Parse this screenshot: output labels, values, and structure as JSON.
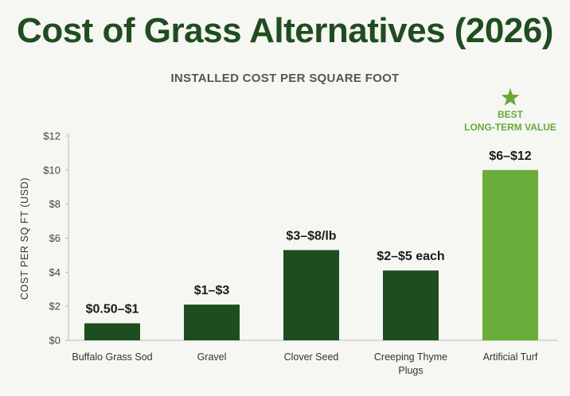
{
  "chart_data": {
    "type": "bar",
    "title": "Cost of Grass Alternatives (2026)",
    "subtitle": "INSTALLED COST PER SQUARE FOOT",
    "ylabel": "COST PER SQ FT (USD)",
    "xlabel": "",
    "ylim": [
      0,
      12
    ],
    "yticks": [
      "$0",
      "$2",
      "$4",
      "$6",
      "$8",
      "$10",
      "$12"
    ],
    "categories": [
      [
        "Buffalo Grass Sod"
      ],
      [
        "Gravel"
      ],
      [
        "Clover Seed"
      ],
      [
        "Creeping Thyme",
        "Plugs"
      ],
      [
        "Artificial Turf"
      ]
    ],
    "values": [
      1,
      2.1,
      5.3,
      4.1,
      10
    ],
    "data_labels": [
      "$0.50–$1",
      "$1–$3",
      "$3–$8/lb",
      "$2–$5 each",
      "$6–$12"
    ],
    "colors": [
      "#1e4d20",
      "#1e4d20",
      "#1e4d20",
      "#1e4d20",
      "#6aad3a"
    ],
    "highlight_index": 4,
    "callout": [
      "BEST",
      "LONG-TERM VALUE"
    ],
    "callout_icon": "star-icon",
    "callout_color": "#6aa83a",
    "grid": false
  }
}
